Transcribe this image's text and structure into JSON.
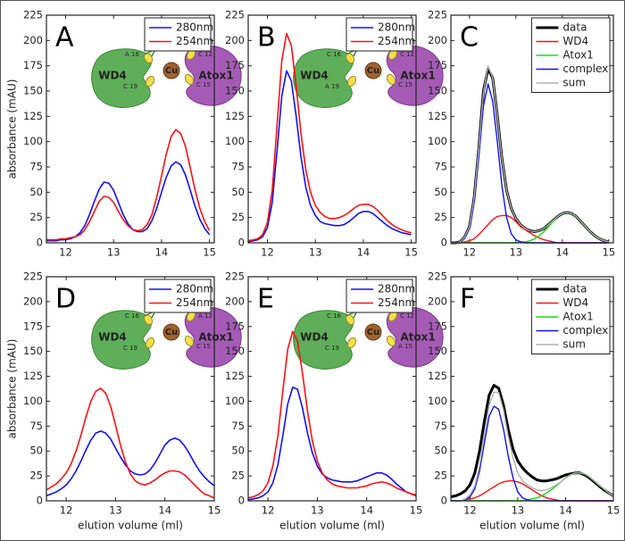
{
  "chart_data": [
    {
      "type": "line",
      "panel_label": "A",
      "ylabel": "absorbance (mAU)",
      "x": [
        11.6,
        11.7,
        11.8,
        11.9,
        12.0,
        12.1,
        12.2,
        12.3,
        12.4,
        12.5,
        12.6,
        12.7,
        12.8,
        12.9,
        13.0,
        13.1,
        13.2,
        13.3,
        13.4,
        13.5,
        13.6,
        13.7,
        13.8,
        13.9,
        14.0,
        14.1,
        14.2,
        14.3,
        14.4,
        14.5,
        14.6,
        14.7,
        14.8,
        14.9,
        15.0
      ],
      "series": [
        {
          "name": "280nm",
          "color": "#1010ff",
          "line_width": 1.6,
          "values": [
            2,
            2,
            2,
            3,
            3,
            4,
            6,
            10,
            17,
            28,
            41,
            53,
            60,
            59,
            52,
            40,
            28,
            19,
            13,
            11,
            11,
            14,
            22,
            34,
            50,
            65,
            76,
            80,
            77,
            67,
            52,
            36,
            23,
            14,
            8
          ]
        },
        {
          "name": "254nm",
          "color": "#ff1010",
          "line_width": 1.6,
          "values": [
            3,
            3,
            3,
            4,
            4,
            5,
            6,
            8,
            13,
            21,
            31,
            41,
            46,
            45,
            40,
            31,
            23,
            17,
            13,
            12,
            13,
            18,
            28,
            45,
            66,
            88,
            105,
            112,
            108,
            95,
            74,
            52,
            34,
            21,
            12
          ]
        }
      ],
      "xlim": [
        11.6,
        15.1
      ],
      "ylim": [
        0,
        225
      ],
      "xticks": [
        12,
        13,
        14,
        15
      ],
      "yticks": [
        0,
        25,
        50,
        75,
        100,
        125,
        150,
        175,
        200,
        225
      ],
      "inset": {
        "proteins": [
          "WD4",
          "Atox1"
        ],
        "metal": "Cu",
        "residues": [
          "A 16",
          "C 19",
          "C 12",
          "C 15"
        ]
      }
    },
    {
      "type": "line",
      "panel_label": "B",
      "x": [
        11.6,
        11.7,
        11.8,
        11.9,
        12.0,
        12.1,
        12.2,
        12.3,
        12.4,
        12.5,
        12.6,
        12.7,
        12.8,
        12.9,
        13.0,
        13.1,
        13.2,
        13.3,
        13.4,
        13.5,
        13.6,
        13.7,
        13.8,
        13.9,
        14.0,
        14.1,
        14.2,
        14.3,
        14.4,
        14.5,
        14.6,
        14.7,
        14.8,
        14.9,
        15.0
      ],
      "series": [
        {
          "name": "280nm",
          "color": "#1010ff",
          "line_width": 1.6,
          "values": [
            1,
            2,
            3,
            6,
            15,
            40,
            90,
            145,
            170,
            160,
            125,
            85,
            55,
            37,
            27,
            21,
            19,
            18,
            17,
            17,
            18,
            21,
            25,
            29,
            31,
            31,
            29,
            25,
            21,
            17,
            14,
            12,
            10,
            9,
            8
          ]
        },
        {
          "name": "254nm",
          "color": "#ff1010",
          "line_width": 1.6,
          "values": [
            2,
            3,
            4,
            8,
            20,
            52,
            115,
            180,
            207,
            195,
            155,
            108,
            72,
            50,
            37,
            30,
            26,
            24,
            24,
            25,
            27,
            30,
            34,
            37,
            38,
            38,
            36,
            32,
            27,
            22,
            18,
            15,
            13,
            11,
            10
          ]
        }
      ],
      "xlim": [
        11.6,
        15.1
      ],
      "ylim": [
        0,
        225
      ],
      "xticks": [
        12,
        13,
        14,
        15
      ],
      "yticks": [
        0,
        25,
        50,
        75,
        100,
        125,
        150,
        175,
        200,
        225
      ],
      "inset": {
        "proteins": [
          "WD4",
          "Atox1"
        ],
        "metal": "Cu",
        "residues": [
          "C 16",
          "A 19",
          "C 12",
          "C 15"
        ]
      }
    },
    {
      "type": "line",
      "panel_label": "C",
      "x": [
        11.6,
        11.7,
        11.8,
        11.9,
        12.0,
        12.1,
        12.2,
        12.3,
        12.4,
        12.5,
        12.6,
        12.7,
        12.8,
        12.9,
        13.0,
        13.1,
        13.2,
        13.3,
        13.4,
        13.5,
        13.6,
        13.7,
        13.8,
        13.9,
        14.0,
        14.1,
        14.2,
        14.3,
        14.4,
        14.5,
        14.6,
        14.7,
        14.8,
        14.9,
        15.0
      ],
      "series": [
        {
          "name": "data",
          "color": "#000000",
          "line_width": 3,
          "values": [
            0,
            0,
            1,
            6,
            16,
            44,
            93,
            150,
            172,
            163,
            126,
            83,
            52,
            34,
            24,
            18,
            14,
            12,
            11,
            12,
            14,
            18,
            22,
            26,
            29,
            30,
            29,
            26,
            21,
            16,
            11,
            7,
            4,
            2,
            1
          ]
        },
        {
          "name": "WD4",
          "color": "#ff1010",
          "line_width": 1.4,
          "values": [
            0,
            0,
            0,
            1,
            2,
            4,
            8,
            13,
            18,
            23,
            26,
            27,
            27,
            25,
            21,
            16,
            13,
            10,
            7,
            5,
            3,
            2,
            1,
            0,
            0,
            0,
            0,
            0,
            0,
            0,
            0,
            0,
            0,
            0,
            0
          ]
        },
        {
          "name": "Atox1",
          "color": "#10e010",
          "line_width": 1.4,
          "values": [
            0,
            0,
            0,
            0,
            0,
            0,
            0,
            0,
            0,
            0,
            0,
            0,
            0,
            0,
            0,
            1,
            1,
            2,
            4,
            7,
            11,
            16,
            21,
            26,
            29,
            30,
            29,
            26,
            21,
            16,
            11,
            7,
            4,
            2,
            1
          ]
        },
        {
          "name": "complex",
          "color": "#1010ff",
          "line_width": 1.4,
          "values": [
            0,
            0,
            1,
            5,
            14,
            40,
            85,
            135,
            157,
            140,
            100,
            56,
            25,
            9,
            3,
            1,
            0,
            0,
            0,
            0,
            0,
            0,
            0,
            0,
            0,
            0,
            0,
            0,
            0,
            0,
            0,
            0,
            0,
            0,
            0
          ]
        },
        {
          "name": "sum",
          "color": "#b0b0b0",
          "line_width": 1.4,
          "values": [
            0,
            0,
            1,
            6,
            16,
            44,
            93,
            148,
            175,
            163,
            126,
            83,
            52,
            34,
            24,
            18,
            14,
            12,
            11,
            12,
            14,
            18,
            22,
            26,
            29,
            30,
            29,
            26,
            21,
            16,
            11,
            7,
            4,
            2,
            1
          ]
        }
      ],
      "xlim": [
        11.6,
        15.1
      ],
      "ylim": [
        0,
        225
      ],
      "xticks": [
        12,
        13,
        14,
        15
      ],
      "yticks": [
        0,
        25,
        50,
        75,
        100,
        125,
        150,
        175,
        200,
        225
      ]
    },
    {
      "type": "line",
      "panel_label": "D",
      "ylabel": "absorbance (mAU)",
      "xlabel": "elution volume (ml)",
      "x": [
        11.6,
        11.7,
        11.8,
        11.9,
        12.0,
        12.1,
        12.2,
        12.3,
        12.4,
        12.5,
        12.6,
        12.7,
        12.8,
        12.9,
        13.0,
        13.1,
        13.2,
        13.3,
        13.4,
        13.5,
        13.6,
        13.7,
        13.8,
        13.9,
        14.0,
        14.1,
        14.2,
        14.3,
        14.4,
        14.5,
        14.6,
        14.7,
        14.8,
        14.9,
        15.0
      ],
      "series": [
        {
          "name": "280nm",
          "color": "#1010ff",
          "line_width": 1.6,
          "values": [
            5,
            7,
            9,
            12,
            16,
            22,
            30,
            40,
            51,
            61,
            68,
            70,
            68,
            62,
            53,
            44,
            36,
            30,
            27,
            26,
            27,
            31,
            38,
            47,
            56,
            61,
            63,
            61,
            55,
            47,
            38,
            30,
            24,
            19,
            15
          ]
        },
        {
          "name": "254nm",
          "color": "#ff1010",
          "line_width": 1.6,
          "values": [
            11,
            14,
            17,
            22,
            28,
            37,
            50,
            66,
            84,
            100,
            110,
            113,
            108,
            95,
            76,
            56,
            39,
            27,
            20,
            17,
            16,
            18,
            21,
            25,
            28,
            30,
            30,
            29,
            26,
            21,
            16,
            11,
            7,
            5,
            3
          ]
        }
      ],
      "xlim": [
        11.6,
        15
      ],
      "ylim": [
        0,
        225
      ],
      "xticks": [
        12,
        13,
        14,
        15
      ],
      "yticks": [
        0,
        25,
        50,
        75,
        100,
        125,
        150,
        175,
        200,
        225
      ],
      "inset": {
        "proteins": [
          "WD4",
          "Atox1"
        ],
        "metal": "Cu",
        "residues": [
          "C 16",
          "C 19",
          "A 12",
          "C 15"
        ]
      }
    },
    {
      "type": "line",
      "panel_label": "E",
      "xlabel": "elution volume (ml)",
      "x": [
        11.6,
        11.7,
        11.8,
        11.9,
        12.0,
        12.1,
        12.2,
        12.3,
        12.4,
        12.5,
        12.6,
        12.7,
        12.8,
        12.9,
        13.0,
        13.1,
        13.2,
        13.3,
        13.4,
        13.5,
        13.6,
        13.7,
        13.8,
        13.9,
        14.0,
        14.1,
        14.2,
        14.3,
        14.4,
        14.5,
        14.6,
        14.7,
        14.8,
        14.9,
        15.0
      ],
      "series": [
        {
          "name": "280nm",
          "color": "#1010ff",
          "line_width": 1.6,
          "values": [
            1,
            2,
            3,
            5,
            9,
            18,
            36,
            65,
            97,
            114,
            112,
            93,
            68,
            48,
            35,
            27,
            23,
            21,
            20,
            19,
            19,
            19,
            20,
            22,
            24,
            26,
            28,
            28,
            26,
            22,
            17,
            13,
            9,
            7,
            5
          ]
        },
        {
          "name": "254nm",
          "color": "#ff1010",
          "line_width": 1.6,
          "values": [
            3,
            4,
            6,
            10,
            18,
            35,
            65,
            110,
            152,
            170,
            160,
            128,
            90,
            60,
            40,
            28,
            21,
            17,
            15,
            14,
            13,
            13,
            13,
            14,
            15,
            17,
            18,
            19,
            18,
            16,
            13,
            11,
            9,
            7,
            6
          ]
        }
      ],
      "xlim": [
        11.6,
        15
      ],
      "ylim": [
        0,
        225
      ],
      "xticks": [
        12,
        13,
        14,
        15
      ],
      "yticks": [
        0,
        25,
        50,
        75,
        100,
        125,
        150,
        175,
        200,
        225
      ],
      "inset": {
        "proteins": [
          "WD4",
          "Atox1"
        ],
        "metal": "Cu",
        "residues": [
          "C 16",
          "C 19",
          "C 12",
          "A 15"
        ]
      }
    },
    {
      "type": "line",
      "panel_label": "F",
      "xlabel": "elution volume (ml)",
      "x": [
        11.6,
        11.7,
        11.8,
        11.9,
        12.0,
        12.1,
        12.2,
        12.3,
        12.4,
        12.5,
        12.6,
        12.7,
        12.8,
        12.9,
        13.0,
        13.1,
        13.2,
        13.3,
        13.4,
        13.5,
        13.6,
        13.7,
        13.8,
        13.9,
        14.0,
        14.1,
        14.2,
        14.3,
        14.4,
        14.5,
        14.6,
        14.7,
        14.8,
        14.9,
        15.0
      ],
      "series": [
        {
          "name": "data",
          "color": "#000000",
          "line_width": 3,
          "values": [
            4,
            5,
            7,
            10,
            16,
            28,
            50,
            80,
            106,
            116,
            113,
            96,
            72,
            52,
            40,
            33,
            28,
            24,
            21,
            20,
            20,
            21,
            22,
            24,
            26,
            27,
            28,
            28,
            26,
            23,
            19,
            15,
            11,
            8,
            5
          ]
        },
        {
          "name": "WD4",
          "color": "#ff1010",
          "line_width": 1.4,
          "values": [
            0,
            0,
            0,
            1,
            2,
            3,
            5,
            8,
            11,
            14,
            17,
            19,
            20,
            20,
            19,
            17,
            14,
            11,
            8,
            5,
            3,
            2,
            1,
            0,
            0,
            0,
            0,
            0,
            0,
            0,
            0,
            0,
            0,
            0,
            0
          ]
        },
        {
          "name": "Atox1",
          "color": "#10e010",
          "line_width": 1.4,
          "values": [
            0,
            0,
            0,
            0,
            0,
            0,
            0,
            0,
            0,
            0,
            0,
            0,
            0,
            0,
            0,
            0,
            1,
            2,
            3,
            5,
            8,
            11,
            15,
            19,
            23,
            26,
            28,
            28,
            27,
            24,
            20,
            16,
            12,
            8,
            5
          ]
        },
        {
          "name": "complex",
          "color": "#1010ff",
          "line_width": 1.4,
          "values": [
            0,
            0,
            0,
            1,
            4,
            12,
            30,
            58,
            85,
            95,
            92,
            72,
            45,
            23,
            9,
            3,
            1,
            0,
            0,
            0,
            0,
            0,
            0,
            0,
            0,
            0,
            0,
            0,
            0,
            0,
            0,
            0,
            0,
            0,
            0
          ]
        },
        {
          "name": "sum",
          "color": "#b0b0b0",
          "line_width": 1.4,
          "values": [
            0,
            0,
            0,
            2,
            6,
            15,
            35,
            66,
            96,
            109,
            109,
            91,
            65,
            43,
            28,
            20,
            16,
            13,
            11,
            10,
            11,
            13,
            16,
            19,
            23,
            26,
            28,
            28,
            27,
            24,
            20,
            16,
            12,
            8,
            5
          ]
        }
      ],
      "xlim": [
        11.6,
        15
      ],
      "ylim": [
        0,
        225
      ],
      "xticks": [
        12,
        13,
        14,
        15
      ],
      "yticks": [
        0,
        25,
        50,
        75,
        100,
        125,
        150,
        175,
        200,
        225
      ]
    }
  ]
}
